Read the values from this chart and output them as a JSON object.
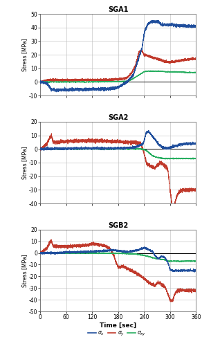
{
  "title_sga1": "SGA1",
  "title_sga2": "SGA2",
  "title_sgb2": "SGB2",
  "xlabel": "Time [sec]",
  "ylabel": "Stress [MPa]",
  "colors": {
    "blue": "#1f4e9c",
    "red": "#c0392b",
    "green": "#27ae60"
  },
  "xlim": [
    0,
    360
  ],
  "xticks": [
    0,
    60,
    120,
    180,
    240,
    300,
    360
  ],
  "sga1_ylim": [
    -10,
    50
  ],
  "sga1_yticks": [
    -10,
    0,
    10,
    20,
    30,
    40,
    50
  ],
  "sga2_ylim": [
    -40,
    20
  ],
  "sga2_yticks": [
    -40,
    -30,
    -20,
    -10,
    0,
    10,
    20
  ],
  "sgb2_ylim": [
    -50,
    20
  ],
  "sgb2_yticks": [
    -50,
    -40,
    -30,
    -20,
    -10,
    0,
    10,
    20
  ],
  "background_color": "#ffffff",
  "grid_color": "#bbbbbb"
}
